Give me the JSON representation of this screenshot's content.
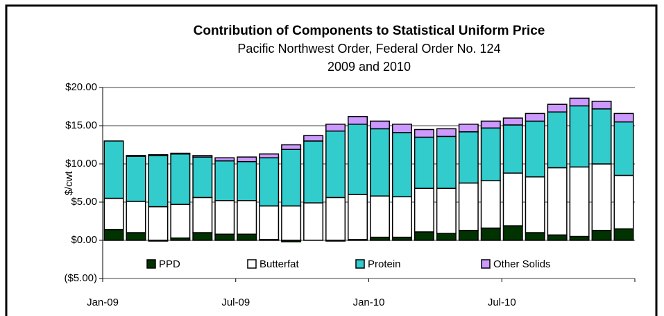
{
  "chart_data": {
    "type": "stacked_bar",
    "title": "Contribution of Components to Statistical Uniform Price",
    "subtitle": "Pacific Northwest Order, Federal Order No. 124",
    "subtitle2": "2009 and 2010",
    "y_label": "$/cwt",
    "categories": [
      "Jan-09",
      null,
      null,
      null,
      null,
      null,
      "Jul-09",
      null,
      null,
      null,
      null,
      null,
      "Jan-10",
      null,
      null,
      null,
      null,
      null,
      "Jul-10",
      null,
      null,
      null,
      null,
      null
    ],
    "series": [
      {
        "name": "PPD",
        "color": "#003300",
        "values": [
          1.4,
          1.0,
          -0.1,
          0.3,
          1.0,
          0.8,
          0.8,
          0.1,
          -0.2,
          0.0,
          -0.1,
          0.1,
          0.4,
          0.4,
          1.1,
          0.9,
          1.3,
          1.6,
          1.9,
          1.0,
          0.7,
          0.5,
          1.3,
          1.5
        ]
      },
      {
        "name": "Butterfat",
        "color": "#ffffff",
        "values": [
          4.1,
          4.1,
          4.4,
          4.4,
          4.6,
          4.4,
          4.4,
          4.4,
          4.5,
          4.9,
          5.6,
          5.9,
          5.4,
          5.3,
          5.7,
          5.9,
          6.2,
          6.2,
          6.9,
          7.3,
          8.8,
          9.1,
          8.7,
          7.0
        ]
      },
      {
        "name": "Protein",
        "color": "#33cccc",
        "values": [
          7.5,
          5.9,
          6.7,
          6.6,
          5.3,
          5.2,
          5.1,
          6.3,
          7.4,
          8.1,
          8.7,
          9.2,
          8.8,
          8.4,
          6.7,
          6.8,
          6.7,
          6.9,
          6.3,
          7.3,
          7.3,
          8.0,
          7.2,
          7.0
        ]
      },
      {
        "name": "Other Solids",
        "color": "#cc99ff",
        "values": [
          0.0,
          0.1,
          0.1,
          0.1,
          0.2,
          0.4,
          0.6,
          0.5,
          0.6,
          0.7,
          0.9,
          1.0,
          1.0,
          1.1,
          1.0,
          1.0,
          1.0,
          0.9,
          0.9,
          1.0,
          1.0,
          1.0,
          1.0,
          1.1
        ]
      }
    ],
    "ylim": [
      -5,
      20
    ],
    "yticks": [
      {
        "value": -5,
        "label": "($5.00)"
      },
      {
        "value": 0,
        "label": "$0.00"
      },
      {
        "value": 5,
        "label": "$5.00"
      },
      {
        "value": 10,
        "label": "$10.00"
      },
      {
        "value": 15,
        "label": "$15.00"
      },
      {
        "value": 20,
        "label": "$20.00"
      }
    ],
    "grid": true,
    "legend": "bottom"
  }
}
